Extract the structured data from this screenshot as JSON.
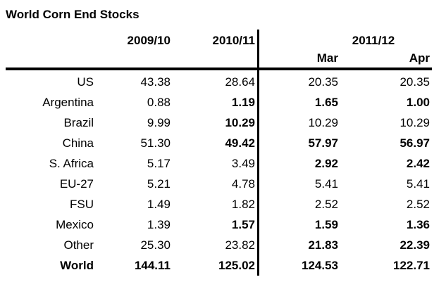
{
  "title": "World Corn End Stocks",
  "header": {
    "year_cols": [
      "2009/10",
      "2010/11"
    ],
    "group_2011_12": "2011/12",
    "month_cols": [
      "Mar",
      "Apr"
    ]
  },
  "rows": [
    {
      "label": "US",
      "values": [
        "43.38",
        "28.64",
        "20.35",
        "20.35"
      ],
      "bold": [
        false,
        false,
        false,
        false
      ],
      "label_bold": false
    },
    {
      "label": "Argentina",
      "values": [
        "0.88",
        "1.19",
        "1.65",
        "1.00"
      ],
      "bold": [
        false,
        true,
        true,
        true
      ],
      "label_bold": false
    },
    {
      "label": "Brazil",
      "values": [
        "9.99",
        "10.29",
        "10.29",
        "10.29"
      ],
      "bold": [
        false,
        true,
        false,
        false
      ],
      "label_bold": false
    },
    {
      "label": "China",
      "values": [
        "51.30",
        "49.42",
        "57.97",
        "56.97"
      ],
      "bold": [
        false,
        true,
        true,
        true
      ],
      "label_bold": false
    },
    {
      "label": "S. Africa",
      "values": [
        "5.17",
        "3.49",
        "2.92",
        "2.42"
      ],
      "bold": [
        false,
        false,
        true,
        true
      ],
      "label_bold": false
    },
    {
      "label": "EU-27",
      "values": [
        "5.21",
        "4.78",
        "5.41",
        "5.41"
      ],
      "bold": [
        false,
        false,
        false,
        false
      ],
      "label_bold": false
    },
    {
      "label": "FSU",
      "values": [
        "1.49",
        "1.82",
        "2.52",
        "2.52"
      ],
      "bold": [
        false,
        false,
        false,
        false
      ],
      "label_bold": false
    },
    {
      "label": "Mexico",
      "values": [
        "1.39",
        "1.57",
        "1.59",
        "1.36"
      ],
      "bold": [
        false,
        true,
        true,
        true
      ],
      "label_bold": false
    },
    {
      "label": "Other",
      "values": [
        "25.30",
        "23.82",
        "21.83",
        "22.39"
      ],
      "bold": [
        false,
        false,
        true,
        true
      ],
      "label_bold": false
    },
    {
      "label": "World",
      "values": [
        "144.11",
        "125.02",
        "124.53",
        "122.71"
      ],
      "bold": [
        true,
        true,
        true,
        true
      ],
      "label_bold": true
    }
  ],
  "colors": {
    "text": "#000000",
    "background": "#ffffff",
    "rule": "#000000"
  }
}
